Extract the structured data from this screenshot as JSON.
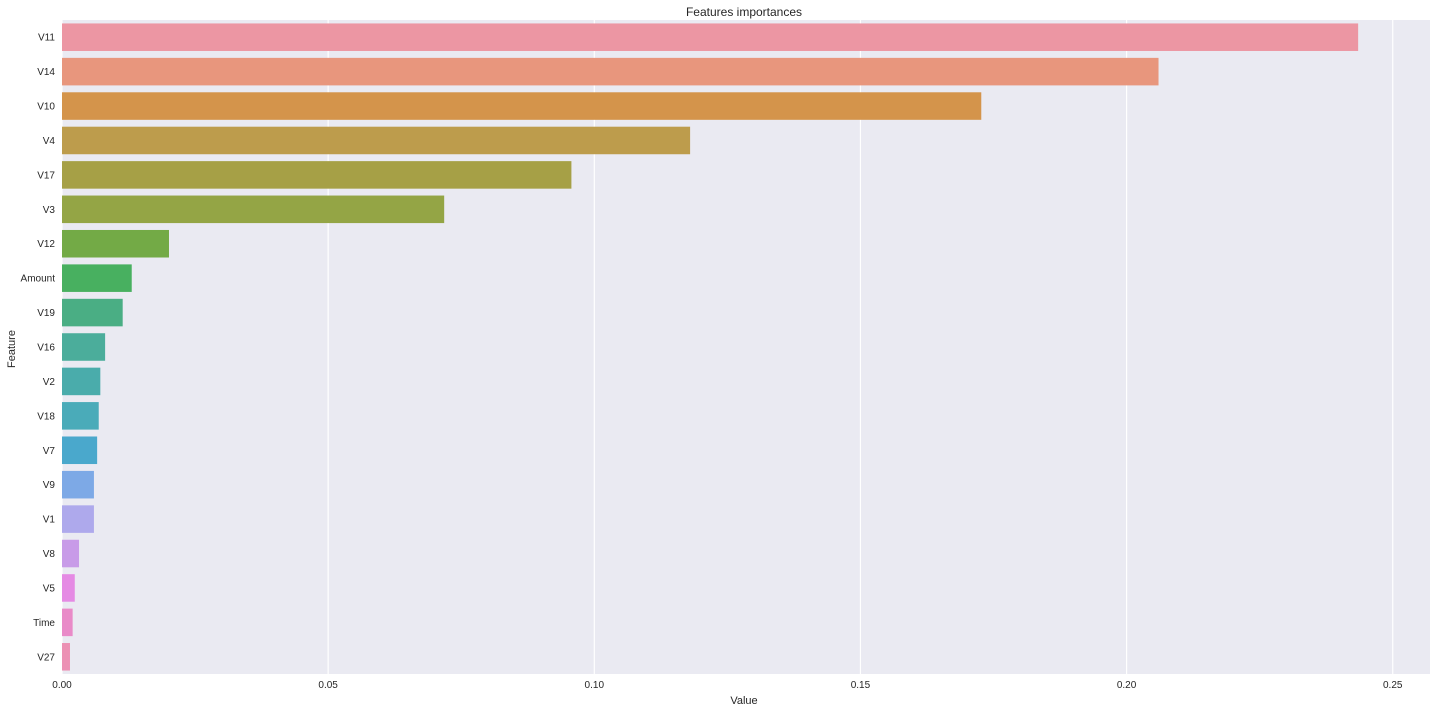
{
  "chart_data": {
    "type": "bar",
    "orientation": "horizontal",
    "title": "Features importances",
    "xlabel": "Value",
    "ylabel": "Feature",
    "xlim": [
      0,
      0.257
    ],
    "x_ticks": [
      0.0,
      0.05,
      0.1,
      0.15,
      0.2,
      0.25
    ],
    "x_tick_labels": [
      "0.00",
      "0.05",
      "0.10",
      "0.15",
      "0.20",
      "0.25"
    ],
    "grid": true,
    "grid_axis": "x",
    "background": "#eaeaf2",
    "categories": [
      "V11",
      "V14",
      "V10",
      "V4",
      "V17",
      "V3",
      "V12",
      "Amount",
      "V19",
      "V16",
      "V2",
      "V18",
      "V7",
      "V9",
      "V1",
      "V8",
      "V5",
      "Time",
      "V27"
    ],
    "values": [
      0.2435,
      0.206,
      0.1727,
      0.118,
      0.0957,
      0.0718,
      0.0201,
      0.0131,
      0.0114,
      0.0081,
      0.0072,
      0.0069,
      0.0066,
      0.006,
      0.006,
      0.0032,
      0.0024,
      0.002,
      0.0015
    ],
    "colors": [
      "#ec96a3",
      "#e8967d",
      "#d4944b",
      "#bd9c4c",
      "#a6a046",
      "#94a545",
      "#73aa46",
      "#48b060",
      "#4aae84",
      "#4bad9b",
      "#4aacab",
      "#4aabb9",
      "#4aa8cc",
      "#7da9e6",
      "#aea9ec",
      "#c89be8",
      "#e58ae4",
      "#e98ac8",
      "#ec91b4"
    ]
  }
}
